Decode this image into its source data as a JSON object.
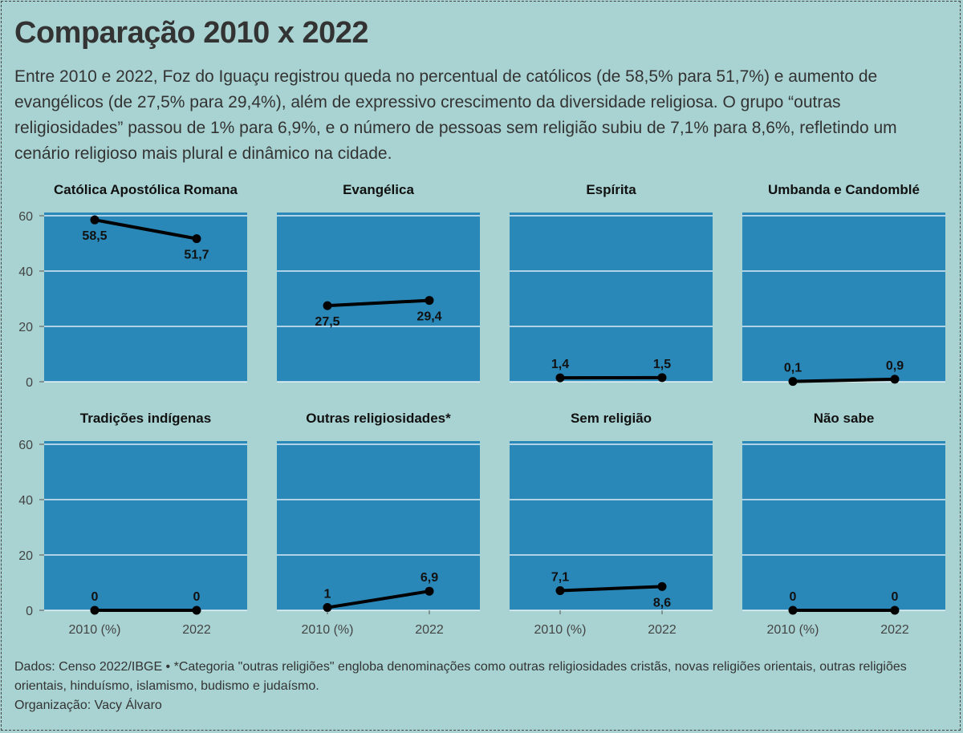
{
  "title": "Comparação 2010 x 2022",
  "subtitle": "Entre 2010 e 2022, Foz do Iguaçu registrou queda no percentual de católicos (de 58,5% para 51,7%) e aumento de evangélicos (de 27,5% para 29,4%), além de expressivo crescimento da diversidade religiosa. O grupo “outras religiosidades” passou de 1% para 6,9%, e o número de pessoas sem religião subiu de 7,1% para 8,6%, refletindo um cenário religioso mais plural e dinâmico na cidade.",
  "caption": {
    "line1": "Dados: Censo 2022/IBGE • *Categoria \"outras religiões\" engloba denominações como outras religiosidades cristãs, novas religiões orientais, outras religiões orientais, hinduísmo, islamismo, budismo e judaísmo.",
    "line2": "Organização: Vacy Álvaro"
  },
  "colors": {
    "background": "#a8d3d2",
    "panel": "#2a88b9",
    "line": "#000000",
    "grid": "#ffffff"
  },
  "chart_data": {
    "type": "line",
    "layout": "small-multiples 2x4",
    "categories": [
      "2010 (%)",
      "2022"
    ],
    "ylim": [
      0,
      60
    ],
    "yticks": [
      0,
      20,
      40,
      60
    ],
    "grid": true,
    "series": [
      {
        "name": "Católica Apostólica Romana",
        "values": [
          58.5,
          51.7
        ],
        "labels": [
          "58,5",
          "51,7"
        ],
        "label_pos": [
          "below",
          "below"
        ]
      },
      {
        "name": "Evangélica",
        "values": [
          27.5,
          29.4
        ],
        "labels": [
          "27,5",
          "29,4"
        ],
        "label_pos": [
          "below",
          "below"
        ]
      },
      {
        "name": "Espírita",
        "values": [
          1.4,
          1.5
        ],
        "labels": [
          "1,4",
          "1,5"
        ],
        "label_pos": [
          "above",
          "above"
        ]
      },
      {
        "name": "Umbanda e Candomblé",
        "values": [
          0.1,
          0.9
        ],
        "labels": [
          "0,1",
          "0,9"
        ],
        "label_pos": [
          "above",
          "above"
        ]
      },
      {
        "name": "Tradições indígenas",
        "values": [
          0,
          0
        ],
        "labels": [
          "0",
          "0"
        ],
        "label_pos": [
          "above",
          "above"
        ]
      },
      {
        "name": "Outras religiosidades*",
        "values": [
          1,
          6.9
        ],
        "labels": [
          "1",
          "6,9"
        ],
        "label_pos": [
          "above",
          "above"
        ]
      },
      {
        "name": "Sem religião",
        "values": [
          7.1,
          8.6
        ],
        "labels": [
          "7,1",
          "8,6"
        ],
        "label_pos": [
          "above",
          "below"
        ]
      },
      {
        "name": "Não sabe",
        "values": [
          0,
          0
        ],
        "labels": [
          "0",
          "0"
        ],
        "label_pos": [
          "above",
          "above"
        ]
      }
    ]
  }
}
